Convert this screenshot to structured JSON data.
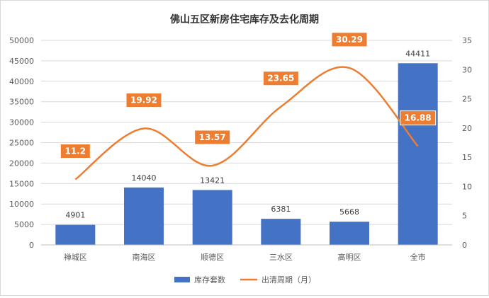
{
  "chart_data": {
    "type": "bar",
    "title": "佛山五区新房住宅库存及去化周期",
    "categories": [
      "禅城区",
      "南海区",
      "顺德区",
      "三水区",
      "高明区",
      "全市"
    ],
    "series": [
      {
        "name": "库存套数",
        "type": "bar",
        "axis": "left",
        "values": [
          4901,
          14040,
          13421,
          6381,
          5668,
          44411
        ],
        "color": "#4472c4"
      },
      {
        "name": "出清周期（月）",
        "type": "line",
        "axis": "right",
        "values": [
          11.2,
          19.92,
          13.57,
          23.65,
          30.29,
          16.88
        ],
        "color": "#ed7d31"
      }
    ],
    "bar_labels": [
      "4901",
      "14040",
      "13421",
      "6381",
      "5668",
      "44411"
    ],
    "line_labels": [
      "11.2",
      "19.92",
      "13.57",
      "23.65",
      "30.29",
      "16.88"
    ],
    "y_left": {
      "min": 0,
      "max": 50000,
      "step": 5000,
      "ticks": [
        "0",
        "5000",
        "10000",
        "15000",
        "20000",
        "25000",
        "30000",
        "35000",
        "40000",
        "45000",
        "50000"
      ]
    },
    "y_right": {
      "min": 0,
      "max": 35,
      "step": 5,
      "ticks": [
        "0",
        "5",
        "10",
        "15",
        "20",
        "25",
        "30",
        "35"
      ]
    },
    "grid": true,
    "legend_position": "bottom"
  }
}
